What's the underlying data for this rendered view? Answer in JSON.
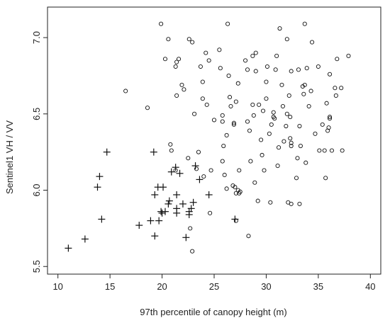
{
  "chart_data": {
    "type": "scatter",
    "title": "",
    "xlabel": "97th percentile of canopy height (m)",
    "ylabel": "Sentinel1 VH / VV",
    "xlim": [
      9,
      41
    ],
    "ylim": [
      5.45,
      7.2
    ],
    "xticks": [
      10,
      15,
      20,
      25,
      30,
      35,
      40
    ],
    "yticks": [
      5.5,
      6.0,
      6.5,
      7.0
    ],
    "xtick_labels": [
      "10",
      "15",
      "20",
      "25",
      "30",
      "35",
      "40"
    ],
    "ytick_labels": [
      "5.5",
      "6.0",
      "6.5",
      "7.0"
    ],
    "grid": false,
    "legend": "none",
    "series": [
      {
        "marker": "plus",
        "points": [
          [
            11.0,
            5.62
          ],
          [
            12.6,
            5.68
          ],
          [
            13.8,
            6.02
          ],
          [
            14.0,
            6.09
          ],
          [
            14.2,
            5.81
          ],
          [
            14.7,
            6.25
          ],
          [
            17.8,
            5.77
          ],
          [
            18.9,
            5.8
          ],
          [
            19.2,
            6.25
          ],
          [
            19.3,
            5.97
          ],
          [
            19.3,
            5.7
          ],
          [
            19.6,
            6.02
          ],
          [
            19.7,
            5.8
          ],
          [
            19.9,
            5.86
          ],
          [
            20.1,
            6.02
          ],
          [
            20.0,
            5.85
          ],
          [
            20.3,
            5.86
          ],
          [
            20.6,
            5.91
          ],
          [
            20.7,
            5.93
          ],
          [
            20.9,
            6.12
          ],
          [
            21.3,
            6.15
          ],
          [
            21.4,
            5.97
          ],
          [
            21.4,
            5.88
          ],
          [
            21.4,
            5.85
          ],
          [
            21.7,
            6.11
          ],
          [
            22.0,
            5.91
          ],
          [
            22.3,
            5.69
          ],
          [
            22.6,
            5.86
          ],
          [
            22.6,
            5.84
          ],
          [
            22.8,
            5.88
          ],
          [
            23.0,
            5.92
          ],
          [
            23.2,
            6.16
          ],
          [
            23.6,
            6.07
          ],
          [
            24.5,
            5.97
          ],
          [
            27.0,
            5.81
          ]
        ]
      },
      {
        "marker": "circle",
        "points": [
          [
            16.5,
            6.65
          ],
          [
            18.6,
            6.54
          ],
          [
            19.9,
            7.09
          ],
          [
            20.3,
            6.86
          ],
          [
            20.6,
            6.99
          ],
          [
            20.8,
            6.3
          ],
          [
            20.9,
            6.26
          ],
          [
            21.3,
            6.81
          ],
          [
            21.4,
            6.62
          ],
          [
            21.4,
            6.84
          ],
          [
            21.6,
            6.86
          ],
          [
            21.9,
            6.69
          ],
          [
            22.1,
            6.66
          ],
          [
            21.3,
            6.13
          ],
          [
            22.5,
            6.21
          ],
          [
            22.6,
            6.99
          ],
          [
            22.9,
            6.97
          ],
          [
            23.1,
            6.5
          ],
          [
            23.3,
            6.14
          ],
          [
            23.5,
            6.25
          ],
          [
            23.7,
            6.81
          ],
          [
            23.9,
            6.71
          ],
          [
            23.9,
            6.6
          ],
          [
            24.0,
            6.09
          ],
          [
            24.2,
            6.9
          ],
          [
            24.3,
            6.56
          ],
          [
            24.5,
            6.85
          ],
          [
            24.7,
            6.13
          ],
          [
            25.0,
            6.46
          ],
          [
            22.7,
            5.75
          ],
          [
            22.9,
            5.6
          ],
          [
            24.6,
            5.85
          ],
          [
            25.5,
            6.92
          ],
          [
            25.6,
            6.8
          ],
          [
            25.8,
            6.49
          ],
          [
            25.8,
            6.45
          ],
          [
            25.9,
            6.29
          ],
          [
            25.8,
            6.19
          ],
          [
            26.0,
            6.1
          ],
          [
            26.2,
            6.01
          ],
          [
            26.2,
            6.36
          ],
          [
            26.3,
            7.09
          ],
          [
            26.4,
            6.75
          ],
          [
            26.5,
            6.61
          ],
          [
            26.6,
            6.55
          ],
          [
            26.9,
            6.43
          ],
          [
            26.9,
            6.44
          ],
          [
            26.8,
            6.03
          ],
          [
            27.0,
            6.02
          ],
          [
            27.1,
            5.98
          ],
          [
            27.3,
            6.7
          ],
          [
            27.1,
            6.58
          ],
          [
            27.4,
            6.13
          ],
          [
            27.4,
            5.98
          ],
          [
            27.1,
            5.8
          ],
          [
            27.3,
            6.0
          ],
          [
            27.5,
            5.99
          ],
          [
            28.0,
            6.85
          ],
          [
            28.2,
            6.79
          ],
          [
            28.2,
            6.45
          ],
          [
            28.4,
            6.39
          ],
          [
            28.7,
            6.88
          ],
          [
            28.5,
            6.19
          ],
          [
            28.7,
            6.56
          ],
          [
            28.8,
            6.49
          ],
          [
            28.9,
            6.05
          ],
          [
            29.0,
            6.78
          ],
          [
            29.0,
            6.9
          ],
          [
            29.2,
            5.93
          ],
          [
            29.3,
            6.56
          ],
          [
            29.5,
            6.33
          ],
          [
            29.6,
            6.23
          ],
          [
            29.7,
            6.52
          ],
          [
            29.8,
            6.13
          ],
          [
            30.0,
            6.6
          ],
          [
            30.0,
            6.71
          ],
          [
            30.1,
            6.81
          ],
          [
            30.3,
            6.37
          ],
          [
            30.4,
            5.92
          ],
          [
            30.5,
            6.43
          ],
          [
            30.7,
            6.51
          ],
          [
            30.7,
            6.48
          ],
          [
            30.8,
            6.47
          ],
          [
            30.9,
            6.79
          ],
          [
            31.0,
            6.88
          ],
          [
            31.1,
            6.16
          ],
          [
            31.2,
            6.28
          ],
          [
            31.3,
            7.06
          ],
          [
            31.5,
            6.69
          ],
          [
            31.6,
            6.55
          ],
          [
            31.7,
            6.32
          ],
          [
            31.9,
            6.42
          ],
          [
            32.0,
            6.99
          ],
          [
            32.2,
            6.62
          ],
          [
            32.3,
            6.34
          ],
          [
            32.0,
            6.5
          ],
          [
            32.3,
            6.48
          ],
          [
            32.4,
            6.29
          ],
          [
            32.4,
            6.31
          ],
          [
            32.4,
            6.78
          ],
          [
            32.1,
            5.92
          ],
          [
            32.4,
            5.91
          ],
          [
            32.9,
            6.08
          ],
          [
            33.1,
            6.79
          ],
          [
            33.2,
            6.42
          ],
          [
            33.3,
            6.29
          ],
          [
            33.0,
            6.21
          ],
          [
            33.2,
            5.91
          ],
          [
            33.5,
            6.68
          ],
          [
            33.6,
            6.63
          ],
          [
            33.7,
            6.69
          ],
          [
            33.7,
            7.09
          ],
          [
            33.9,
            6.8
          ],
          [
            33.8,
            6.18
          ],
          [
            34.1,
            6.55
          ],
          [
            34.3,
            6.65
          ],
          [
            34.4,
            6.97
          ],
          [
            34.7,
            6.37
          ],
          [
            35.0,
            6.81
          ],
          [
            35.1,
            6.26
          ],
          [
            35.4,
            6.43
          ],
          [
            35.6,
            6.26
          ],
          [
            35.7,
            6.08
          ],
          [
            35.8,
            6.57
          ],
          [
            35.9,
            6.39
          ],
          [
            36.0,
            6.41
          ],
          [
            36.1,
            6.47
          ],
          [
            36.1,
            6.48
          ],
          [
            36.1,
            6.76
          ],
          [
            36.3,
            6.26
          ],
          [
            36.6,
            6.67
          ],
          [
            36.7,
            6.62
          ],
          [
            36.8,
            6.86
          ],
          [
            37.2,
            6.67
          ],
          [
            37.3,
            6.26
          ],
          [
            37.9,
            6.88
          ],
          [
            28.3,
            5.7
          ]
        ]
      }
    ]
  }
}
